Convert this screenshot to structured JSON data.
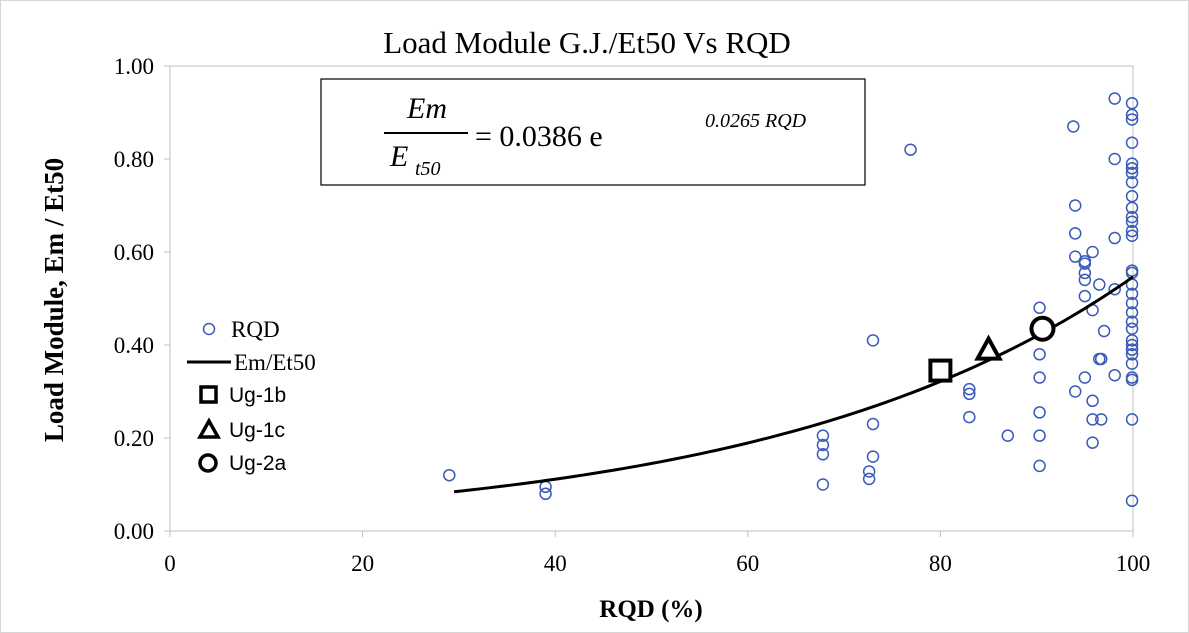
{
  "chart_data": {
    "type": "scatter",
    "title": "Load Module G.J./Et50  Vs  RQD",
    "xlabel": "RQD (%)",
    "ylabel": "Load Module, Em / Et50",
    "xlim": [
      0,
      100
    ],
    "ylim": [
      0,
      1.0
    ],
    "x_ticks": [
      "0",
      "20",
      "40",
      "60",
      "80",
      "100"
    ],
    "y_ticks": [
      "0.00",
      "0.20",
      "0.40",
      "0.60",
      "0.80",
      "1.00"
    ],
    "grid": false,
    "legend_position": "left",
    "equation": {
      "lhs_numerator": "Em",
      "lhs_denominator": "E",
      "lhs_denominator_sub": "t50",
      "rhs_coefficient": "= 0.0386 e",
      "rhs_exponent": "0.0265 RQD"
    },
    "colors": {
      "points": "#3a5bb8",
      "curve": "#000000",
      "markers": "#000000"
    },
    "series": [
      {
        "name": "RQD",
        "kind": "scatter",
        "points": [
          [
            29,
            0.12
          ],
          [
            39,
            0.095
          ],
          [
            39,
            0.08
          ],
          [
            67.8,
            0.205
          ],
          [
            67.8,
            0.185
          ],
          [
            67.8,
            0.165
          ],
          [
            67.8,
            0.1
          ],
          [
            72.6,
            0.128
          ],
          [
            72.6,
            0.112
          ],
          [
            73,
            0.41
          ],
          [
            73,
            0.23
          ],
          [
            73,
            0.16
          ],
          [
            76.9,
            0.82
          ],
          [
            83,
            0.305
          ],
          [
            83,
            0.295
          ],
          [
            83,
            0.245
          ],
          [
            87,
            0.205
          ],
          [
            90.3,
            0.48
          ],
          [
            90.3,
            0.38
          ],
          [
            90.3,
            0.33
          ],
          [
            90.3,
            0.255
          ],
          [
            90.3,
            0.205
          ],
          [
            90.3,
            0.14
          ],
          [
            93.8,
            0.87
          ],
          [
            94,
            0.7
          ],
          [
            94,
            0.64
          ],
          [
            94,
            0.59
          ],
          [
            94,
            0.3
          ],
          [
            95,
            0.58
          ],
          [
            95,
            0.575
          ],
          [
            95,
            0.555
          ],
          [
            95,
            0.54
          ],
          [
            95,
            0.505
          ],
          [
            95,
            0.33
          ],
          [
            95.8,
            0.6
          ],
          [
            95.8,
            0.475
          ],
          [
            95.8,
            0.28
          ],
          [
            95.8,
            0.24
          ],
          [
            95.8,
            0.19
          ],
          [
            96.5,
            0.53
          ],
          [
            96.5,
            0.37
          ],
          [
            96.7,
            0.37
          ],
          [
            97,
            0.43
          ],
          [
            96.7,
            0.24
          ],
          [
            98.1,
            0.93
          ],
          [
            98.1,
            0.8
          ],
          [
            98.1,
            0.63
          ],
          [
            98.1,
            0.52
          ],
          [
            98.1,
            0.335
          ],
          [
            99.9,
            0.92
          ],
          [
            99.9,
            0.895
          ],
          [
            99.9,
            0.885
          ],
          [
            99.9,
            0.835
          ],
          [
            99.9,
            0.79
          ],
          [
            99.9,
            0.78
          ],
          [
            99.9,
            0.77
          ],
          [
            99.9,
            0.75
          ],
          [
            99.9,
            0.72
          ],
          [
            99.9,
            0.695
          ],
          [
            99.9,
            0.675
          ],
          [
            99.9,
            0.665
          ],
          [
            99.9,
            0.645
          ],
          [
            99.9,
            0.635
          ],
          [
            99.9,
            0.56
          ],
          [
            99.9,
            0.555
          ],
          [
            99.9,
            0.53
          ],
          [
            99.9,
            0.51
          ],
          [
            99.9,
            0.49
          ],
          [
            99.9,
            0.47
          ],
          [
            99.9,
            0.45
          ],
          [
            99.9,
            0.435
          ],
          [
            99.9,
            0.41
          ],
          [
            99.9,
            0.4
          ],
          [
            99.9,
            0.39
          ],
          [
            99.9,
            0.38
          ],
          [
            99.9,
            0.36
          ],
          [
            99.9,
            0.33
          ],
          [
            99.9,
            0.325
          ],
          [
            99.9,
            0.24
          ],
          [
            99.9,
            0.065
          ]
        ]
      },
      {
        "name": "Em/Et50",
        "kind": "line",
        "x_range": [
          29.5,
          100
        ],
        "coefficient": 0.0386,
        "exponent": 0.0265
      },
      {
        "name": "Ug-1b",
        "kind": "marker",
        "marker": "square",
        "points": [
          [
            80,
            0.345
          ]
        ]
      },
      {
        "name": "Ug-1c",
        "kind": "marker",
        "marker": "triangle",
        "points": [
          [
            85,
            0.39
          ]
        ]
      },
      {
        "name": "Ug-2a",
        "kind": "marker",
        "marker": "circle",
        "points": [
          [
            90.6,
            0.435
          ]
        ]
      }
    ]
  }
}
